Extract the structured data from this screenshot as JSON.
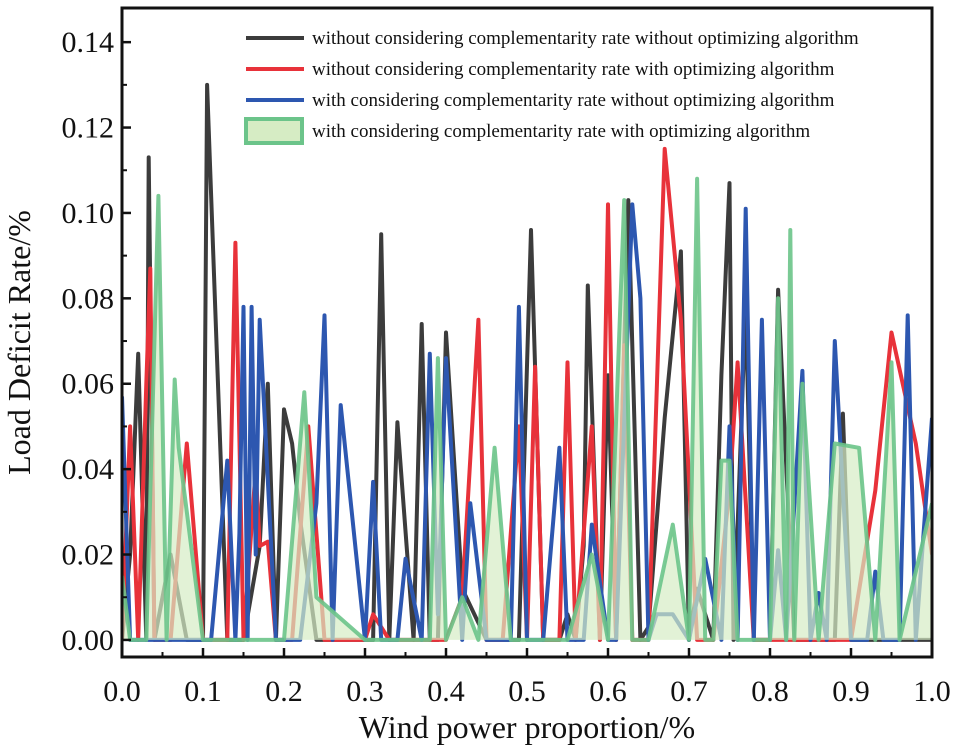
{
  "chart_data": {
    "type": "line",
    "title": "",
    "xlabel": "Wind power proportion/%",
    "ylabel": "Load Deficit Rate/%",
    "xlim": [
      0.0,
      1.0
    ],
    "ylim": [
      -0.004,
      0.148
    ],
    "xticks": [
      0.0,
      0.1,
      0.2,
      0.3,
      0.4,
      0.5,
      0.6,
      0.7,
      0.8,
      0.9,
      1.0
    ],
    "xtick_labels": [
      "0.0",
      "0.1",
      "0.2",
      "0.3",
      "0.4",
      "0.5",
      "0.6",
      "0.7",
      "0.8",
      "0.9",
      "1.0"
    ],
    "yticks": [
      0.0,
      0.02,
      0.04,
      0.06,
      0.08,
      0.1,
      0.12,
      0.14
    ],
    "ytick_labels": [
      "0.00",
      "0.02",
      "0.04",
      "0.06",
      "0.08",
      "0.10",
      "0.12",
      "0.14"
    ],
    "legend_position": "top-right",
    "series": [
      {
        "name": "without considering complementarity rate without optimizing algorithm",
        "color": "#3c3c3c",
        "style": "line",
        "x": [
          0.0,
          0.01,
          0.02,
          0.03,
          0.033,
          0.04,
          0.06,
          0.08,
          0.1,
          0.105,
          0.13,
          0.15,
          0.17,
          0.18,
          0.19,
          0.2,
          0.21,
          0.22,
          0.24,
          0.26,
          0.29,
          0.31,
          0.32,
          0.33,
          0.34,
          0.36,
          0.37,
          0.38,
          0.39,
          0.4,
          0.42,
          0.45,
          0.47,
          0.49,
          0.505,
          0.52,
          0.54,
          0.55,
          0.56,
          0.57,
          0.575,
          0.59,
          0.6,
          0.61,
          0.625,
          0.64,
          0.65,
          0.67,
          0.69,
          0.7,
          0.71,
          0.73,
          0.74,
          0.75,
          0.755,
          0.77,
          0.78,
          0.8,
          0.81,
          0.83,
          0.85,
          0.88,
          0.89,
          0.9,
          0.95,
          1.0
        ],
        "values": [
          0.0,
          0.02,
          0.067,
          0.0,
          0.113,
          0.0,
          0.02,
          0.0,
          0.0,
          0.13,
          0.0,
          0.0,
          0.022,
          0.06,
          0.0,
          0.054,
          0.046,
          0.028,
          0.0,
          0.0,
          0.0,
          0.0,
          0.095,
          0.0,
          0.051,
          0.0,
          0.074,
          0.0,
          0.0,
          0.072,
          0.012,
          0.0,
          0.0,
          0.0,
          0.096,
          0.0,
          0.0,
          0.006,
          0.0,
          0.022,
          0.083,
          0.0,
          0.062,
          0.0,
          0.103,
          0.0,
          0.003,
          0.052,
          0.091,
          0.0,
          0.012,
          0.0,
          0.062,
          0.107,
          0.0,
          0.079,
          0.0,
          0.0,
          0.082,
          0.0,
          0.0,
          0.0,
          0.053,
          0.0,
          0.0,
          0.0
        ]
      },
      {
        "name": "without considering complementarity rate with optimizing algorithm",
        "color": "#e8323a",
        "style": "line",
        "x": [
          0.0,
          0.01,
          0.02,
          0.03,
          0.035,
          0.04,
          0.06,
          0.08,
          0.1,
          0.13,
          0.14,
          0.15,
          0.165,
          0.17,
          0.18,
          0.19,
          0.21,
          0.23,
          0.25,
          0.26,
          0.3,
          0.31,
          0.33,
          0.35,
          0.37,
          0.4,
          0.42,
          0.44,
          0.45,
          0.47,
          0.49,
          0.5,
          0.51,
          0.52,
          0.54,
          0.55,
          0.56,
          0.58,
          0.59,
          0.6,
          0.61,
          0.62,
          0.63,
          0.65,
          0.67,
          0.69,
          0.71,
          0.73,
          0.75,
          0.76,
          0.78,
          0.8,
          0.85,
          0.9,
          0.93,
          0.95,
          0.98,
          1.0
        ],
        "values": [
          0.0,
          0.05,
          0.0,
          0.06,
          0.087,
          0.0,
          0.0,
          0.046,
          0.0,
          0.0,
          0.093,
          0.0,
          0.04,
          0.022,
          0.023,
          0.0,
          0.0,
          0.05,
          0.0,
          0.0,
          0.0,
          0.006,
          0.0,
          0.0,
          0.0,
          0.0,
          0.01,
          0.075,
          0.0,
          0.0,
          0.05,
          0.0,
          0.064,
          0.0,
          0.0,
          0.065,
          0.0,
          0.05,
          0.0,
          0.102,
          0.0,
          0.069,
          0.0,
          0.0,
          0.115,
          0.075,
          0.0,
          0.0,
          0.035,
          0.065,
          0.0,
          0.0,
          0.0,
          0.0,
          0.035,
          0.072,
          0.046,
          0.02
        ]
      },
      {
        "name": "with considering complementarity rate without optimizing algorithm",
        "color": "#2d57b0",
        "style": "line",
        "x": [
          0.0,
          0.01,
          0.03,
          0.06,
          0.08,
          0.11,
          0.13,
          0.14,
          0.145,
          0.15,
          0.155,
          0.16,
          0.165,
          0.17,
          0.19,
          0.22,
          0.24,
          0.25,
          0.26,
          0.27,
          0.3,
          0.31,
          0.32,
          0.34,
          0.35,
          0.37,
          0.38,
          0.39,
          0.4,
          0.42,
          0.43,
          0.45,
          0.48,
          0.49,
          0.5,
          0.52,
          0.54,
          0.55,
          0.57,
          0.58,
          0.6,
          0.61,
          0.63,
          0.64,
          0.65,
          0.66,
          0.68,
          0.7,
          0.72,
          0.74,
          0.75,
          0.76,
          0.77,
          0.78,
          0.79,
          0.8,
          0.81,
          0.82,
          0.84,
          0.85,
          0.86,
          0.87,
          0.88,
          0.9,
          0.92,
          0.93,
          0.94,
          0.96,
          0.97,
          0.98,
          1.0
        ],
        "values": [
          0.057,
          0.0,
          0.0,
          0.0,
          0.0,
          0.0,
          0.042,
          0.0,
          0.025,
          0.078,
          0.0,
          0.078,
          0.02,
          0.075,
          0.0,
          0.0,
          0.032,
          0.076,
          0.0,
          0.055,
          0.0,
          0.037,
          0.0,
          0.0,
          0.019,
          0.0,
          0.067,
          0.006,
          0.066,
          0.0,
          0.032,
          0.0,
          0.0,
          0.078,
          0.0,
          0.0,
          0.045,
          0.0,
          0.0,
          0.027,
          0.0,
          0.0,
          0.102,
          0.08,
          0.0,
          0.006,
          0.006,
          0.0,
          0.019,
          0.0,
          0.05,
          0.0,
          0.101,
          0.0,
          0.075,
          0.0,
          0.021,
          0.0,
          0.063,
          0.0,
          0.011,
          0.0,
          0.07,
          0.0,
          0.0,
          0.016,
          0.0,
          0.0,
          0.076,
          0.0,
          0.052
        ]
      },
      {
        "name": "with considering complementarity rate with optimizing algorithm",
        "color": "#6cc48a",
        "fill": "#d6ecc4",
        "style": "area",
        "x": [
          0.0,
          0.01,
          0.03,
          0.045,
          0.055,
          0.065,
          0.07,
          0.1,
          0.2,
          0.225,
          0.24,
          0.3,
          0.38,
          0.39,
          0.4,
          0.42,
          0.44,
          0.46,
          0.48,
          0.5,
          0.55,
          0.58,
          0.6,
          0.62,
          0.63,
          0.65,
          0.68,
          0.7,
          0.71,
          0.72,
          0.73,
          0.74,
          0.75,
          0.76,
          0.78,
          0.8,
          0.81,
          0.82,
          0.825,
          0.83,
          0.84,
          0.86,
          0.88,
          0.91,
          0.93,
          0.95,
          0.96,
          1.0
        ],
        "values": [
          0.015,
          0.0,
          0.0,
          0.104,
          0.0,
          0.061,
          0.045,
          0.0,
          0.0,
          0.058,
          0.01,
          0.0,
          0.0,
          0.066,
          0.0,
          0.01,
          0.0,
          0.045,
          0.0,
          0.0,
          0.0,
          0.02,
          0.0,
          0.103,
          0.0,
          0.0,
          0.027,
          0.0,
          0.108,
          0.0,
          0.0,
          0.042,
          0.042,
          0.0,
          0.0,
          0.0,
          0.08,
          0.0,
          0.096,
          0.0,
          0.06,
          0.0,
          0.046,
          0.045,
          0.0,
          0.065,
          0.0,
          0.032
        ]
      }
    ]
  }
}
